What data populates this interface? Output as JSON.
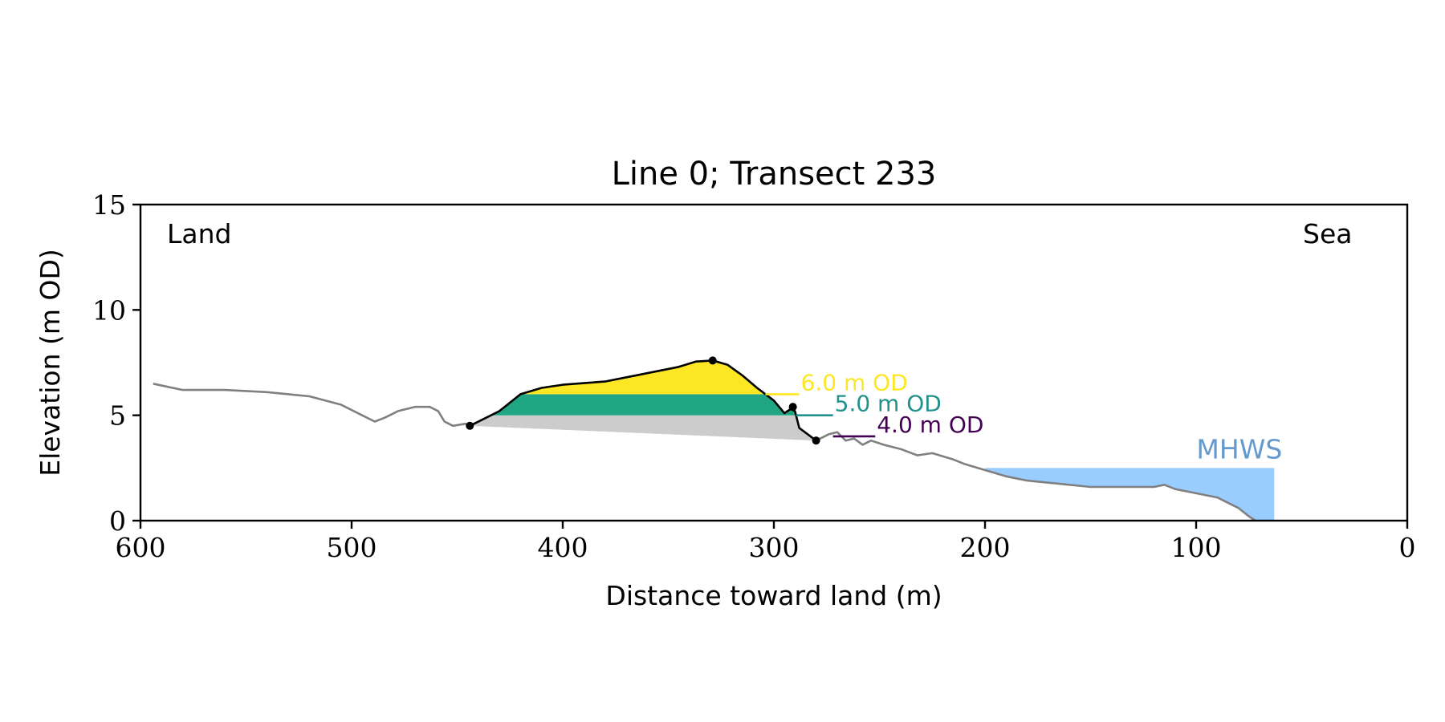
{
  "chart_data": {
    "type": "line",
    "title": "Line 0; Transect 233",
    "xlabel": "Distance toward land (m)",
    "ylabel": "Elevation (m OD)",
    "xlim": [
      600,
      0
    ],
    "ylim": [
      0,
      15
    ],
    "x_ticks": [
      600,
      500,
      400,
      300,
      200,
      100,
      0
    ],
    "y_ticks": [
      0,
      5,
      10,
      15
    ],
    "grid": false,
    "corner_labels": {
      "left": "Land",
      "right": "Sea"
    },
    "colors": {
      "profile": "#808080",
      "dune": "#000000",
      "fill_6": "#fde725",
      "fill_5": "#21a685",
      "fill_4": "#cccccc",
      "mhws_fill": "#99ccff",
      "mhws_text": "#6699cc",
      "label_6": "#fde725",
      "label_5": "#21918c",
      "label_4": "#440154"
    },
    "profile": [
      [
        594,
        6.5
      ],
      [
        580,
        6.2
      ],
      [
        560,
        6.2
      ],
      [
        540,
        6.1
      ],
      [
        520,
        5.9
      ],
      [
        505,
        5.5
      ],
      [
        495,
        5.0
      ],
      [
        489,
        4.7
      ],
      [
        484,
        4.9
      ],
      [
        478,
        5.2
      ],
      [
        470,
        5.4
      ],
      [
        463,
        5.4
      ],
      [
        459,
        5.2
      ],
      [
        456,
        4.7
      ],
      [
        452,
        4.5
      ],
      [
        446,
        4.6
      ]
    ],
    "dune_profile": [
      [
        444,
        4.5
      ],
      [
        438,
        4.8
      ],
      [
        430,
        5.2
      ],
      [
        420,
        6.0
      ],
      [
        410,
        6.3
      ],
      [
        400,
        6.45
      ],
      [
        380,
        6.6
      ],
      [
        365,
        6.9
      ],
      [
        345,
        7.3
      ],
      [
        337,
        7.55
      ],
      [
        329,
        7.6
      ],
      [
        322,
        7.4
      ],
      [
        315,
        6.9
      ],
      [
        308,
        6.3
      ],
      [
        300,
        5.7
      ],
      [
        295,
        5.1
      ],
      [
        292,
        5.3
      ],
      [
        290,
        5.2
      ],
      [
        288,
        4.4
      ],
      [
        284,
        4.1
      ],
      [
        280,
        3.8
      ]
    ],
    "seaward_profile": [
      [
        280,
        3.8
      ],
      [
        274,
        4.1
      ],
      [
        270,
        4.2
      ],
      [
        266,
        3.8
      ],
      [
        262,
        3.9
      ],
      [
        258,
        3.6
      ],
      [
        254,
        3.8
      ],
      [
        248,
        3.6
      ],
      [
        240,
        3.4
      ],
      [
        232,
        3.1
      ],
      [
        225,
        3.2
      ],
      [
        215,
        2.9
      ],
      [
        210,
        2.7
      ],
      [
        200,
        2.4
      ],
      [
        190,
        2.1
      ],
      [
        180,
        1.9
      ],
      [
        170,
        1.8
      ],
      [
        160,
        1.7
      ],
      [
        150,
        1.6
      ],
      [
        140,
        1.6
      ],
      [
        130,
        1.6
      ],
      [
        120,
        1.6
      ],
      [
        115,
        1.7
      ],
      [
        110,
        1.5
      ],
      [
        100,
        1.3
      ],
      [
        90,
        1.1
      ],
      [
        80,
        0.6
      ],
      [
        75,
        0.2
      ],
      [
        72,
        0.0
      ]
    ],
    "toe": [
      444,
      4.5
    ],
    "crest": [
      329,
      7.6
    ],
    "heel_point": [
      291,
      5.4
    ],
    "seaward_toe": [
      280,
      3.8
    ],
    "levels": [
      {
        "label": "6.0 m OD",
        "value": 6.0,
        "label_x": 288
      },
      {
        "label": "5.0 m OD",
        "value": 5.0,
        "label_x": 272
      },
      {
        "label": "4.0 m OD",
        "value": 4.0,
        "label_x": 252
      }
    ],
    "mhws": {
      "label": "MHWS",
      "value": 2.5,
      "x_from": 200,
      "x_to": 63
    }
  }
}
